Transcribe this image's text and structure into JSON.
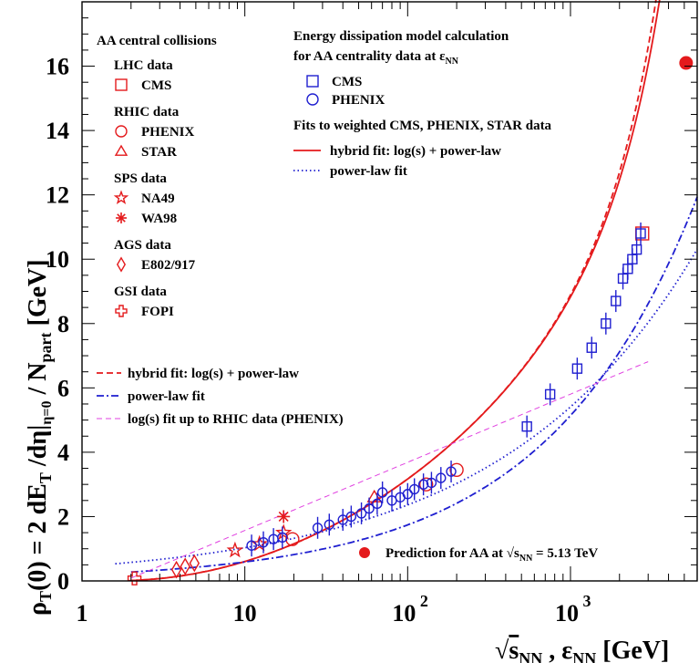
{
  "chart_data": {
    "type": "scatter",
    "x_scale": "log",
    "xlim": [
      1,
      6000
    ],
    "ylim": [
      0,
      18
    ],
    "xlabel": "√s_NN , ε_NN  [GeV]",
    "ylabel": "ρ_T(0) = 2 dE_T /dη|_η=0 / N_part  [GeV]",
    "x_ticks": [
      "1",
      "10",
      "10^2",
      "10^3"
    ],
    "y_ticks": [
      "0",
      "2",
      "4",
      "6",
      "8",
      "10",
      "12",
      "14",
      "16"
    ],
    "legend_left": {
      "header": "AA central collisions",
      "groups": [
        {
          "title": "LHC data",
          "entries": [
            {
              "label": "CMS",
              "marker": "open-square",
              "color": "#e41a1c"
            }
          ]
        },
        {
          "title": "RHIC data",
          "entries": [
            {
              "label": "PHENIX",
              "marker": "open-circle",
              "color": "#e41a1c"
            },
            {
              "label": "STAR",
              "marker": "open-triangle",
              "color": "#e41a1c"
            }
          ]
        },
        {
          "title": "SPS data",
          "entries": [
            {
              "label": "NA49",
              "marker": "open-star",
              "color": "#e41a1c"
            },
            {
              "label": "WA98",
              "marker": "asterisk",
              "color": "#e41a1c"
            }
          ]
        },
        {
          "title": "AGS data",
          "entries": [
            {
              "label": "E802/917",
              "marker": "open-diamond",
              "color": "#e41a1c"
            }
          ]
        },
        {
          "title": "GSI data",
          "entries": [
            {
              "label": "FOPI",
              "marker": "open-cross",
              "color": "#e41a1c"
            }
          ]
        }
      ],
      "lines": [
        {
          "label": "hybrid fit: log(s) + power-law",
          "style": "dashed",
          "color": "#e41a1c"
        },
        {
          "label": "power-law fit",
          "style": "dashdot",
          "color": "#1f1fd0"
        },
        {
          "label": "log(s) fit up to RHIC data (PHENIX)",
          "style": "dashed-thin",
          "color": "#e040e0"
        }
      ]
    },
    "legend_right": {
      "header1": "Energy dissipation model calculation",
      "header2": "for AA centrality data at ε",
      "header2_sub": "NN",
      "entries": [
        {
          "label": "CMS",
          "marker": "open-square",
          "color": "#1f1fd0"
        },
        {
          "label": "PHENIX",
          "marker": "open-circle",
          "color": "#1f1fd0"
        }
      ],
      "fits_header": "Fits to weighted CMS, PHENIX, STAR data",
      "lines": [
        {
          "label": "hybrid fit: log(s) + power-law",
          "style": "solid",
          "color": "#e41a1c"
        },
        {
          "label": "power-law fit",
          "style": "dotted",
          "color": "#1f1fd0"
        }
      ]
    },
    "prediction_label": "Prediction for AA at √s",
    "prediction_label_sub": "NN",
    "prediction_label_tail": " = 5.13 TeV",
    "prediction_point": {
      "x": 5130,
      "y": 16.1,
      "color": "#e41a1c"
    },
    "series": [
      {
        "name": "CMS",
        "marker": "open-square",
        "color": "#e41a1c",
        "points": [
          [
            2760,
            10.8
          ]
        ]
      },
      {
        "name": "PHENIX",
        "marker": "open-circle",
        "color": "#e41a1c",
        "points": [
          [
            19.6,
            1.3
          ],
          [
            130,
            3.0
          ],
          [
            200,
            3.45
          ]
        ]
      },
      {
        "name": "STAR",
        "marker": "open-triangle",
        "color": "#e41a1c",
        "points": [
          [
            62.4,
            2.6
          ]
        ]
      },
      {
        "name": "NA49",
        "marker": "open-star",
        "color": "#e41a1c",
        "points": [
          [
            8.7,
            0.95
          ],
          [
            12.3,
            1.15
          ],
          [
            17.3,
            1.5
          ]
        ]
      },
      {
        "name": "WA98",
        "marker": "asterisk",
        "color": "#e41a1c",
        "points": [
          [
            17.3,
            2.0
          ]
        ]
      },
      {
        "name": "E802/917",
        "marker": "open-diamond",
        "color": "#e41a1c",
        "points": [
          [
            3.8,
            0.35
          ],
          [
            4.3,
            0.45
          ],
          [
            4.9,
            0.55
          ]
        ]
      },
      {
        "name": "FOPI",
        "marker": "open-cross",
        "color": "#e41a1c",
        "points": [
          [
            2.1,
            0.08
          ]
        ]
      },
      {
        "name": "CMS (model)",
        "marker": "open-square",
        "color": "#1f1fd0",
        "points": [
          [
            540,
            4.8
          ],
          [
            750,
            5.8
          ],
          [
            1100,
            6.6
          ],
          [
            1350,
            7.25
          ],
          [
            1650,
            8.0
          ],
          [
            1900,
            8.7
          ],
          [
            2100,
            9.4
          ],
          [
            2250,
            9.7
          ],
          [
            2400,
            10.0
          ],
          [
            2550,
            10.3
          ],
          [
            2700,
            10.8
          ]
        ]
      },
      {
        "name": "PHENIX (model)",
        "marker": "open-circle",
        "color": "#1f1fd0",
        "points": [
          [
            11,
            1.1
          ],
          [
            13,
            1.2
          ],
          [
            15,
            1.3
          ],
          [
            17,
            1.35
          ],
          [
            28,
            1.65
          ],
          [
            33,
            1.75
          ],
          [
            40,
            1.9
          ],
          [
            45,
            2.0
          ],
          [
            52,
            2.1
          ],
          [
            58,
            2.25
          ],
          [
            65,
            2.4
          ],
          [
            70,
            2.75
          ],
          [
            80,
            2.5
          ],
          [
            90,
            2.6
          ],
          [
            100,
            2.7
          ],
          [
            110,
            2.85
          ],
          [
            125,
            3.0
          ],
          [
            140,
            3.05
          ],
          [
            160,
            3.2
          ],
          [
            185,
            3.4
          ]
        ]
      }
    ],
    "curves": [
      {
        "name": "hybrid fit (weighted, solid)",
        "style": "solid",
        "color": "#e41a1c",
        "x_range": [
          2,
          5600
        ]
      },
      {
        "name": "hybrid fit (dashed)",
        "style": "dashed",
        "color": "#e41a1c",
        "x_range": [
          2,
          5600
        ]
      },
      {
        "name": "power-law fit (dotted)",
        "style": "dotted",
        "color": "#1f1fd0",
        "x_range": [
          1.6,
          6000
        ]
      },
      {
        "name": "power-law fit (dash-dot)",
        "style": "dashdot",
        "color": "#1f1fd0",
        "x_range": [
          2,
          6000
        ]
      },
      {
        "name": "log(s) fit",
        "style": "dashed-thin",
        "color": "#e040e0",
        "x_range": [
          2,
          3000
        ]
      }
    ]
  }
}
